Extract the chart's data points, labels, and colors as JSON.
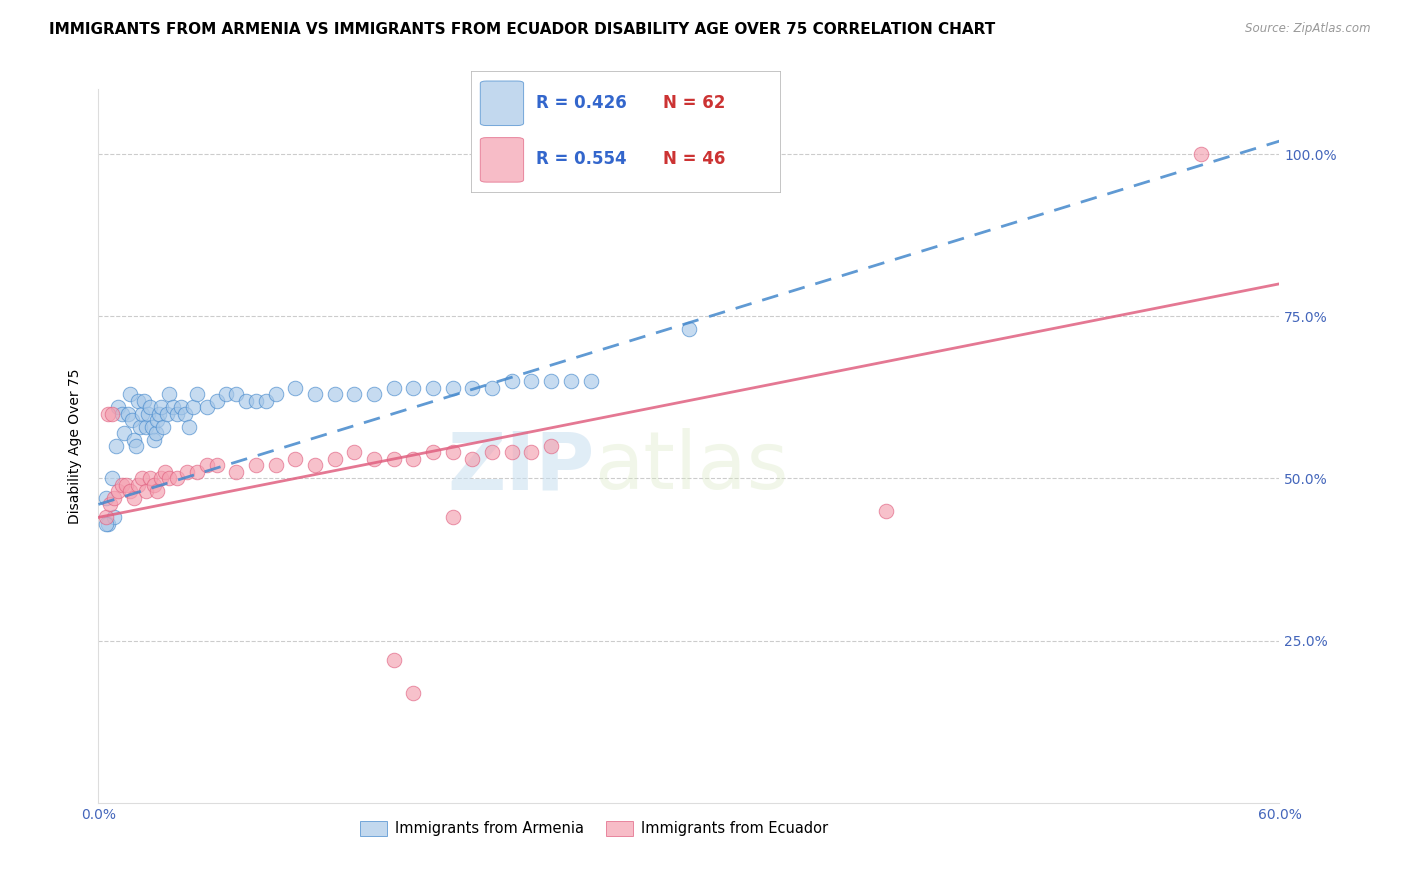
{
  "title": "IMMIGRANTS FROM ARMENIA VS IMMIGRANTS FROM ECUADOR DISABILITY AGE OVER 75 CORRELATION CHART",
  "source": "Source: ZipAtlas.com",
  "ylabel": "Disability Age Over 75",
  "x_min": 0.0,
  "x_max": 0.6,
  "y_min": 0.0,
  "y_max": 1.1,
  "y_ticks_right": [
    0.25,
    0.5,
    0.75,
    1.0
  ],
  "y_tick_labels_right": [
    "25.0%",
    "50.0%",
    "75.0%",
    "100.0%"
  ],
  "armenia_color": "#a8c8e8",
  "ecuador_color": "#f4a0b0",
  "armenia_line_color": "#4488cc",
  "ecuador_line_color": "#e06080",
  "armenia_R": 0.426,
  "armenia_N": 62,
  "ecuador_R": 0.554,
  "ecuador_N": 46,
  "title_fontsize": 11,
  "label_fontsize": 10,
  "tick_fontsize": 10,
  "watermark_zip": "ZIP",
  "watermark_atlas": "atlas",
  "armenia_line_x": [
    0.0,
    0.6
  ],
  "armenia_line_y": [
    0.46,
    1.02
  ],
  "ecuador_line_x": [
    0.0,
    0.6
  ],
  "ecuador_line_y": [
    0.44,
    0.8
  ],
  "armenia_x": [
    0.004,
    0.007,
    0.009,
    0.01,
    0.012,
    0.013,
    0.015,
    0.016,
    0.017,
    0.018,
    0.019,
    0.02,
    0.021,
    0.022,
    0.023,
    0.024,
    0.025,
    0.026,
    0.027,
    0.028,
    0.029,
    0.03,
    0.031,
    0.032,
    0.033,
    0.035,
    0.036,
    0.038,
    0.04,
    0.042,
    0.044,
    0.046,
    0.048,
    0.05,
    0.055,
    0.06,
    0.065,
    0.07,
    0.075,
    0.08,
    0.085,
    0.09,
    0.1,
    0.11,
    0.12,
    0.13,
    0.14,
    0.15,
    0.16,
    0.17,
    0.18,
    0.19,
    0.2,
    0.21,
    0.22,
    0.23,
    0.24,
    0.25,
    0.005,
    0.008,
    0.3,
    0.004
  ],
  "armenia_y": [
    0.47,
    0.5,
    0.55,
    0.61,
    0.6,
    0.57,
    0.6,
    0.63,
    0.59,
    0.56,
    0.55,
    0.62,
    0.58,
    0.6,
    0.62,
    0.58,
    0.6,
    0.61,
    0.58,
    0.56,
    0.57,
    0.59,
    0.6,
    0.61,
    0.58,
    0.6,
    0.63,
    0.61,
    0.6,
    0.61,
    0.6,
    0.58,
    0.61,
    0.63,
    0.61,
    0.62,
    0.63,
    0.63,
    0.62,
    0.62,
    0.62,
    0.63,
    0.64,
    0.63,
    0.63,
    0.63,
    0.63,
    0.64,
    0.64,
    0.64,
    0.64,
    0.64,
    0.64,
    0.65,
    0.65,
    0.65,
    0.65,
    0.65,
    0.43,
    0.44,
    0.73,
    0.43
  ],
  "ecuador_x": [
    0.004,
    0.006,
    0.008,
    0.01,
    0.012,
    0.014,
    0.016,
    0.018,
    0.02,
    0.022,
    0.024,
    0.026,
    0.028,
    0.03,
    0.032,
    0.034,
    0.036,
    0.04,
    0.045,
    0.05,
    0.055,
    0.06,
    0.07,
    0.08,
    0.09,
    0.1,
    0.11,
    0.12,
    0.13,
    0.14,
    0.15,
    0.16,
    0.17,
    0.18,
    0.19,
    0.2,
    0.21,
    0.22,
    0.23,
    0.4,
    0.15,
    0.16,
    0.18,
    0.005,
    0.007,
    0.56
  ],
  "ecuador_y": [
    0.44,
    0.46,
    0.47,
    0.48,
    0.49,
    0.49,
    0.48,
    0.47,
    0.49,
    0.5,
    0.48,
    0.5,
    0.49,
    0.48,
    0.5,
    0.51,
    0.5,
    0.5,
    0.51,
    0.51,
    0.52,
    0.52,
    0.51,
    0.52,
    0.52,
    0.53,
    0.52,
    0.53,
    0.54,
    0.53,
    0.53,
    0.53,
    0.54,
    0.54,
    0.53,
    0.54,
    0.54,
    0.54,
    0.55,
    0.45,
    0.22,
    0.17,
    0.44,
    0.6,
    0.6,
    1.0
  ]
}
